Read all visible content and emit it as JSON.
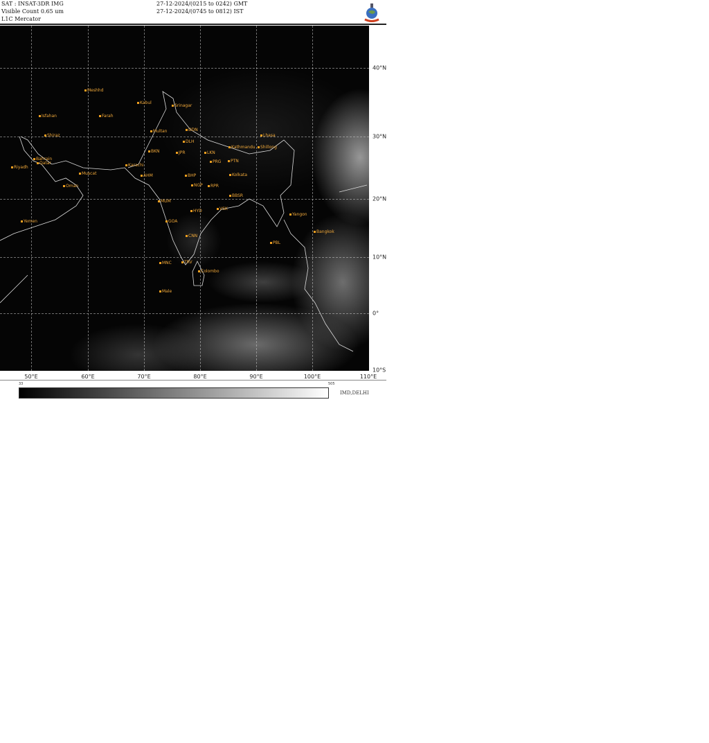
{
  "header": {
    "satellite": "SAT : INSAT-3DR IMG",
    "channel": "Visible Count 0.65 um",
    "projection": "L1C Mercator",
    "time_gmt": "27-12-2024/(0215 to 0242) GMT",
    "time_ist": "27-12-2024/(0745 to 0812) IST",
    "logo": "IMD emblem"
  },
  "axes": {
    "longitudes": [
      "50°E",
      "60°E",
      "70°E",
      "80°E",
      "90°E",
      "100°E",
      "110°E"
    ],
    "latitudes": [
      "40°N",
      "30°N",
      "20°N",
      "10°N",
      "0°",
      "10°S"
    ]
  },
  "colorbar": {
    "min": "33",
    "max": "505",
    "colors": [
      "#000000",
      "#ffffff"
    ]
  },
  "credit": "IMD,DELHI",
  "label_color": "#f0a83a",
  "cities": [
    "Meshhd",
    "Kabul",
    "Isfahan",
    "Farah",
    "Multan",
    "Shiraz",
    "Riyadh",
    "Bahrain",
    "Qatar",
    "Karachi",
    "Muscat",
    "Oman",
    "Yemen",
    "Srinagar",
    "DDN",
    "DLH",
    "BKN",
    "JPR",
    "LKN",
    "PRG",
    "PTN",
    "Kathmandu",
    "Lhasa",
    "Shillong",
    "Kolkata",
    "BHP",
    "AHM",
    "MUM",
    "NGP",
    "RPR",
    "BBSR",
    "HYD",
    "VSK",
    "GOA",
    "CNN",
    "TRV",
    "MNC",
    "Male",
    "Colombo",
    "PBL",
    "Yangon",
    "Bangkok"
  ]
}
